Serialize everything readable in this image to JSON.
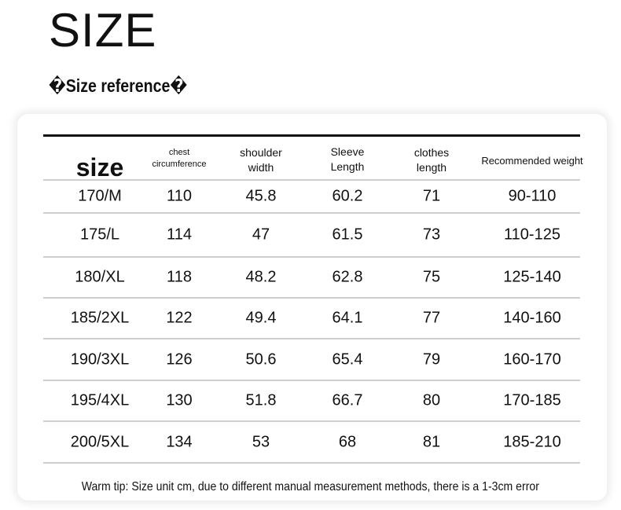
{
  "header": {
    "title": "SIZE",
    "subtitle": "�Size reference�"
  },
  "table": {
    "columns": [
      "size",
      "chest circumference",
      "shoulder width",
      "Sleeve Length",
      "clothes length",
      "Recommended weight"
    ],
    "rows": [
      [
        "170/M",
        "110",
        "45.8",
        "60.2",
        "71",
        "90-110"
      ],
      [
        "175/L",
        "114",
        "47",
        "61.5",
        "73",
        "110-125"
      ],
      [
        "180/XL",
        "118",
        "48.2",
        "62.8",
        "75",
        "125-140"
      ],
      [
        "185/2XL",
        "122",
        "49.4",
        "64.1",
        "77",
        "140-160"
      ],
      [
        "190/3XL",
        "126",
        "50.6",
        "65.4",
        "79",
        "160-170"
      ],
      [
        "195/4XL",
        "130",
        "51.8",
        "66.7",
        "80",
        "170-185"
      ],
      [
        "200/5XL",
        "134",
        "53",
        "68",
        "81",
        "185-210"
      ]
    ]
  },
  "footer": {
    "tip": "Warm tip: Size unit cm, due to different manual measurement methods, there is a 1-3cm error"
  }
}
